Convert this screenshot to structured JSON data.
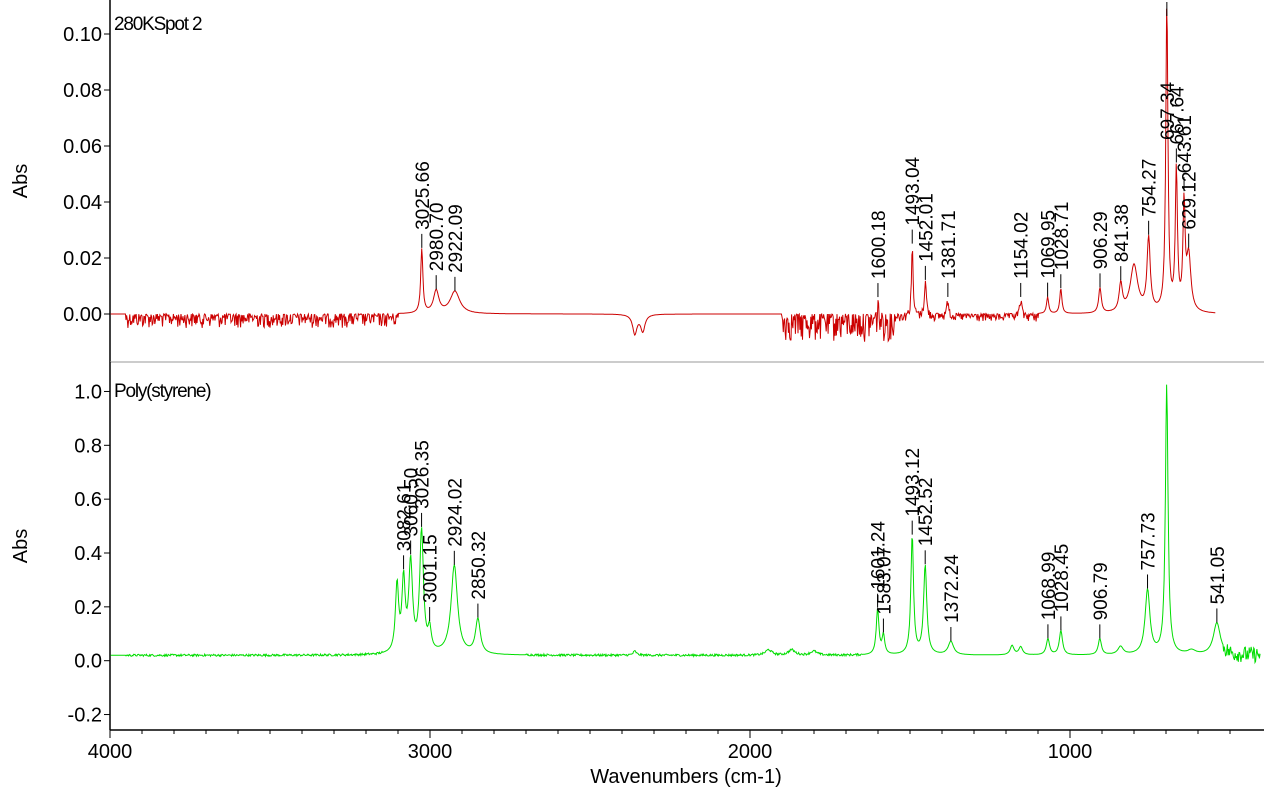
{
  "chart_data": [
    {
      "type": "line",
      "title": "280KSpot 2",
      "xlabel": "",
      "ylabel": "Abs",
      "xlim": [
        4000,
        400
      ],
      "ylim": [
        -0.015,
        0.11
      ],
      "x_reversed": true,
      "yticks": [
        0.0,
        0.02,
        0.04,
        0.06,
        0.08,
        0.1
      ],
      "ytick_labels": [
        "0.00",
        "0.02",
        "0.04",
        "0.06",
        "0.08",
        "0.10"
      ],
      "series_color": "#cc0000",
      "grid": false,
      "baseline": 0.0,
      "noise": [
        {
          "from": 3950,
          "to": 3100,
          "amp": 0.0025,
          "sign": "down"
        },
        {
          "from": 1900,
          "to": 1550,
          "amp": 0.005,
          "sign": "down"
        },
        {
          "from": 1550,
          "to": 1100,
          "amp": 0.0015,
          "sign": "down"
        }
      ],
      "bands": [
        {
          "x": 3025.66,
          "y": 0.023,
          "w": 4
        },
        {
          "x": 2980.7,
          "y": 0.008,
          "w": 10
        },
        {
          "x": 2922.09,
          "y": 0.008,
          "w": 18
        },
        {
          "x": 2360,
          "y": -0.007,
          "w": 8
        },
        {
          "x": 2335,
          "y": -0.006,
          "w": 8
        },
        {
          "x": 1600.18,
          "y": 0.006,
          "w": 3
        },
        {
          "x": 1493.04,
          "y": 0.025,
          "w": 3
        },
        {
          "x": 1452.01,
          "y": 0.012,
          "w": 4
        },
        {
          "x": 1381.71,
          "y": 0.006,
          "w": 4
        },
        {
          "x": 1154.02,
          "y": 0.006,
          "w": 4
        },
        {
          "x": 1069.95,
          "y": 0.006,
          "w": 4
        },
        {
          "x": 1028.71,
          "y": 0.009,
          "w": 4
        },
        {
          "x": 906.29,
          "y": 0.009,
          "w": 5
        },
        {
          "x": 841.38,
          "y": 0.01,
          "w": 6
        },
        {
          "x": 800,
          "y": 0.017,
          "w": 14
        },
        {
          "x": 754.27,
          "y": 0.026,
          "w": 6
        },
        {
          "x": 697.34,
          "y": 0.11,
          "w": 4
        },
        {
          "x": 667.64,
          "y": 0.05,
          "w": 4
        },
        {
          "x": 643.61,
          "y": 0.037,
          "w": 4
        },
        {
          "x": 629.12,
          "y": 0.02,
          "w": 8
        }
      ],
      "end_x": 545,
      "peak_labels": [
        "3025.66",
        "2980.70",
        "2922.09",
        "1600.18",
        "1493.04",
        "1452.01",
        "1381.71",
        "1154.02",
        "1069.95",
        "1028.71",
        "906.29",
        "841.38",
        "754.27",
        "697.34",
        "667.64",
        "643.61",
        "629.12"
      ],
      "peak_label_x": [
        3025.66,
        2980.7,
        2922.09,
        1600.18,
        1493.04,
        1452.01,
        1381.71,
        1154.02,
        1069.95,
        1028.71,
        906.29,
        841.38,
        754.27,
        697.34,
        667.64,
        643.61,
        629.12
      ]
    },
    {
      "type": "line",
      "title": "Poly(styrene)",
      "xlabel": "Wavenumbers (cm-1)",
      "ylabel": "Abs",
      "xlim": [
        4000,
        400
      ],
      "ylim": [
        -0.25,
        1.05
      ],
      "x_reversed": true,
      "xticks": [
        4000,
        3000,
        2000,
        1000
      ],
      "xtick_labels": [
        "4000",
        "3000",
        "2000",
        "1000"
      ],
      "yticks": [
        -0.2,
        0.0,
        0.2,
        0.4,
        0.6,
        0.8,
        1.0
      ],
      "ytick_labels": [
        "-0.2",
        "0.0",
        "0.2",
        "0.4",
        "0.6",
        "0.8",
        "1.0"
      ],
      "series_color": "#00dd00",
      "grid": false,
      "baseline": 0.02,
      "noise": [
        {
          "from": 3950,
          "to": 3150,
          "amp": 0.004,
          "sign": "both"
        },
        {
          "from": 2700,
          "to": 1650,
          "amp": 0.004,
          "sign": "both"
        },
        {
          "from": 520,
          "to": 405,
          "amp": 0.03,
          "sign": "both"
        }
      ],
      "bands": [
        {
          "x": 3103,
          "y": 0.25,
          "w": 6
        },
        {
          "x": 3082.61,
          "y": 0.26,
          "w": 6
        },
        {
          "x": 3060.5,
          "y": 0.33,
          "w": 7
        },
        {
          "x": 3026.35,
          "y": 0.45,
          "w": 7
        },
        {
          "x": 3001.15,
          "y": 0.08,
          "w": 6
        },
        {
          "x": 2924.02,
          "y": 0.33,
          "w": 12
        },
        {
          "x": 2850.32,
          "y": 0.13,
          "w": 9
        },
        {
          "x": 2360,
          "y": 0.015,
          "w": 6
        },
        {
          "x": 1942,
          "y": 0.02,
          "w": 12
        },
        {
          "x": 1870,
          "y": 0.02,
          "w": 12
        },
        {
          "x": 1801,
          "y": 0.015,
          "w": 12
        },
        {
          "x": 1601.24,
          "y": 0.17,
          "w": 5
        },
        {
          "x": 1583.07,
          "y": 0.07,
          "w": 5
        },
        {
          "x": 1493.12,
          "y": 0.44,
          "w": 5
        },
        {
          "x": 1452.52,
          "y": 0.33,
          "w": 6
        },
        {
          "x": 1372.24,
          "y": 0.05,
          "w": 10
        },
        {
          "x": 1181,
          "y": 0.035,
          "w": 7
        },
        {
          "x": 1154,
          "y": 0.03,
          "w": 7
        },
        {
          "x": 1068.99,
          "y": 0.06,
          "w": 6
        },
        {
          "x": 1028.45,
          "y": 0.09,
          "w": 6
        },
        {
          "x": 906.79,
          "y": 0.06,
          "w": 6
        },
        {
          "x": 842,
          "y": 0.03,
          "w": 10
        },
        {
          "x": 757.73,
          "y": 0.24,
          "w": 9
        },
        {
          "x": 697.8,
          "y": 1.0,
          "w": 5
        },
        {
          "x": 620,
          "y": 0.015,
          "w": 15
        },
        {
          "x": 541.05,
          "y": 0.12,
          "w": 13
        }
      ],
      "end_x": 405,
      "peak_labels": [
        "3082.61",
        "3060.50",
        "3026.35",
        "3001.15",
        "2924.02",
        "2850.32",
        "1601.24",
        "1583.07",
        "1493.12",
        "1452.52",
        "1372.24",
        "1068.99",
        "1028.45",
        "906.79",
        "757.73",
        "541.05"
      ],
      "peak_label_x": [
        3082.61,
        3060.5,
        3026.35,
        3001.15,
        2924.02,
        2850.32,
        1601.24,
        1583.07,
        1493.12,
        1452.52,
        1372.24,
        1068.99,
        1028.45,
        906.79,
        757.73,
        541.05
      ]
    }
  ]
}
